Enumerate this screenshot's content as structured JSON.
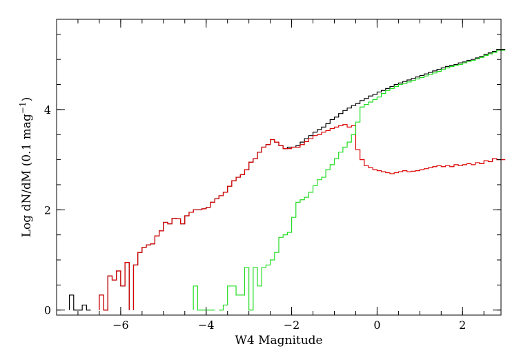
{
  "chart_data": {
    "type": "line",
    "step": true,
    "title": "",
    "xlabel": "W4 Magnitude",
    "ylabel": {
      "main": "Log dN/dM (0.1 mag",
      "sup": "−1",
      "close": ")"
    },
    "xlim": [
      -7.5,
      2.9
    ],
    "ylim": [
      -0.1,
      5.8
    ],
    "xticks": [
      {
        "value": -6,
        "label": "−6"
      },
      {
        "value": -4,
        "label": "−4"
      },
      {
        "value": -2,
        "label": "−2"
      },
      {
        "value": 0,
        "label": "0"
      },
      {
        "value": 2,
        "label": "2"
      }
    ],
    "yticks": [
      {
        "value": 0,
        "label": "0"
      },
      {
        "value": 2,
        "label": "2"
      },
      {
        "value": 4,
        "label": "4"
      }
    ],
    "x_minor_step": 0.5,
    "y_minor_step": 0.5,
    "grid": false,
    "legend": "none",
    "series": [
      {
        "color": "#000000",
        "points": [
          [
            -7.2,
            0.3
          ],
          [
            -7.1,
            0.0
          ],
          [
            -7.0,
            0.0
          ],
          [
            -6.9,
            0.1
          ],
          [
            -6.8,
            0.0
          ],
          [
            -6.5,
            0.3
          ],
          [
            -6.4,
            0.0
          ],
          [
            -6.3,
            0.68
          ],
          [
            -6.2,
            0.6
          ],
          [
            -6.1,
            0.78
          ],
          [
            -6.0,
            0.48
          ],
          [
            -5.9,
            0.95
          ],
          [
            -5.7,
            0.9
          ],
          [
            -5.6,
            1.15
          ],
          [
            -5.5,
            1.25
          ],
          [
            -5.4,
            1.3
          ],
          [
            -5.3,
            1.32
          ],
          [
            -5.2,
            1.48
          ],
          [
            -5.1,
            1.58
          ],
          [
            -5.0,
            1.75
          ],
          [
            -4.9,
            1.72
          ],
          [
            -4.8,
            1.83
          ],
          [
            -4.7,
            1.82
          ],
          [
            -4.6,
            1.72
          ],
          [
            -4.5,
            1.88
          ],
          [
            -4.4,
            1.95
          ],
          [
            -4.3,
            2.0
          ],
          [
            -4.2,
            2.0
          ],
          [
            -4.1,
            2.02
          ],
          [
            -4.0,
            2.05
          ],
          [
            -3.9,
            2.15
          ],
          [
            -3.8,
            2.22
          ],
          [
            -3.7,
            2.28
          ],
          [
            -3.6,
            2.35
          ],
          [
            -3.5,
            2.47
          ],
          [
            -3.4,
            2.58
          ],
          [
            -3.3,
            2.65
          ],
          [
            -3.2,
            2.7
          ],
          [
            -3.1,
            2.8
          ],
          [
            -3.0,
            2.95
          ],
          [
            -2.9,
            3.02
          ],
          [
            -2.8,
            3.15
          ],
          [
            -2.7,
            3.25
          ],
          [
            -2.6,
            3.3
          ],
          [
            -2.5,
            3.4
          ],
          [
            -2.4,
            3.35
          ],
          [
            -2.3,
            3.28
          ],
          [
            -2.2,
            3.22
          ],
          [
            -2.1,
            3.25
          ],
          [
            -2.0,
            3.25
          ],
          [
            -1.9,
            3.28
          ],
          [
            -1.8,
            3.35
          ],
          [
            -1.7,
            3.42
          ],
          [
            -1.6,
            3.48
          ],
          [
            -1.5,
            3.55
          ],
          [
            -1.4,
            3.6
          ],
          [
            -1.3,
            3.65
          ],
          [
            -1.2,
            3.72
          ],
          [
            -1.1,
            3.8
          ],
          [
            -1.0,
            3.85
          ],
          [
            -0.9,
            3.92
          ],
          [
            -0.8,
            3.98
          ],
          [
            -0.7,
            4.03
          ],
          [
            -0.6,
            4.08
          ],
          [
            -0.5,
            4.12
          ],
          [
            -0.4,
            4.18
          ],
          [
            -0.3,
            4.22
          ],
          [
            -0.2,
            4.27
          ],
          [
            -0.1,
            4.3
          ],
          [
            0.0,
            4.35
          ],
          [
            0.1,
            4.38
          ],
          [
            0.2,
            4.42
          ],
          [
            0.3,
            4.46
          ],
          [
            0.4,
            4.5
          ],
          [
            0.5,
            4.53
          ],
          [
            0.6,
            4.56
          ],
          [
            0.7,
            4.59
          ],
          [
            0.8,
            4.62
          ],
          [
            0.9,
            4.65
          ],
          [
            1.0,
            4.68
          ],
          [
            1.1,
            4.71
          ],
          [
            1.2,
            4.74
          ],
          [
            1.3,
            4.77
          ],
          [
            1.4,
            4.8
          ],
          [
            1.5,
            4.83
          ],
          [
            1.6,
            4.86
          ],
          [
            1.7,
            4.88
          ],
          [
            1.8,
            4.9
          ],
          [
            1.9,
            4.93
          ],
          [
            2.0,
            4.95
          ],
          [
            2.1,
            4.98
          ],
          [
            2.2,
            5.0
          ],
          [
            2.3,
            5.03
          ],
          [
            2.4,
            5.06
          ],
          [
            2.5,
            5.1
          ],
          [
            2.6,
            5.13
          ],
          [
            2.7,
            5.16
          ],
          [
            2.8,
            5.2
          ],
          [
            2.9,
            5.2
          ]
        ]
      },
      {
        "color": "#dd0000",
        "points": [
          [
            -6.5,
            0.3
          ],
          [
            -6.4,
            0.0
          ],
          [
            -6.3,
            0.68
          ],
          [
            -6.2,
            0.6
          ],
          [
            -6.1,
            0.78
          ],
          [
            -6.0,
            0.48
          ],
          [
            -5.9,
            0.95
          ],
          [
            -5.7,
            0.9
          ],
          [
            -5.6,
            1.15
          ],
          [
            -5.5,
            1.25
          ],
          [
            -5.4,
            1.3
          ],
          [
            -5.3,
            1.32
          ],
          [
            -5.2,
            1.48
          ],
          [
            -5.1,
            1.58
          ],
          [
            -5.0,
            1.75
          ],
          [
            -4.9,
            1.72
          ],
          [
            -4.8,
            1.83
          ],
          [
            -4.7,
            1.82
          ],
          [
            -4.6,
            1.72
          ],
          [
            -4.5,
            1.88
          ],
          [
            -4.4,
            1.95
          ],
          [
            -4.3,
            2.0
          ],
          [
            -4.2,
            2.0
          ],
          [
            -4.1,
            2.02
          ],
          [
            -4.0,
            2.05
          ],
          [
            -3.9,
            2.15
          ],
          [
            -3.8,
            2.22
          ],
          [
            -3.7,
            2.28
          ],
          [
            -3.6,
            2.35
          ],
          [
            -3.5,
            2.47
          ],
          [
            -3.4,
            2.58
          ],
          [
            -3.3,
            2.65
          ],
          [
            -3.2,
            2.7
          ],
          [
            -3.1,
            2.8
          ],
          [
            -3.0,
            2.95
          ],
          [
            -2.9,
            3.02
          ],
          [
            -2.8,
            3.15
          ],
          [
            -2.7,
            3.25
          ],
          [
            -2.6,
            3.3
          ],
          [
            -2.5,
            3.4
          ],
          [
            -2.4,
            3.35
          ],
          [
            -2.3,
            3.28
          ],
          [
            -2.2,
            3.22
          ],
          [
            -2.1,
            3.22
          ],
          [
            -2.0,
            3.25
          ],
          [
            -1.9,
            3.25
          ],
          [
            -1.8,
            3.3
          ],
          [
            -1.7,
            3.36
          ],
          [
            -1.6,
            3.42
          ],
          [
            -1.5,
            3.48
          ],
          [
            -1.4,
            3.5
          ],
          [
            -1.3,
            3.55
          ],
          [
            -1.2,
            3.58
          ],
          [
            -1.1,
            3.62
          ],
          [
            -1.0,
            3.65
          ],
          [
            -0.9,
            3.68
          ],
          [
            -0.8,
            3.7
          ],
          [
            -0.7,
            3.65
          ],
          [
            -0.6,
            3.68
          ],
          [
            -0.5,
            3.2
          ],
          [
            -0.4,
            3.0
          ],
          [
            -0.3,
            2.88
          ],
          [
            -0.2,
            2.84
          ],
          [
            -0.1,
            2.8
          ],
          [
            0.0,
            2.78
          ],
          [
            0.1,
            2.76
          ],
          [
            0.2,
            2.74
          ],
          [
            0.3,
            2.72
          ],
          [
            0.4,
            2.74
          ],
          [
            0.5,
            2.76
          ],
          [
            0.6,
            2.78
          ],
          [
            0.7,
            2.76
          ],
          [
            0.8,
            2.77
          ],
          [
            0.9,
            2.78
          ],
          [
            1.0,
            2.8
          ],
          [
            1.1,
            2.82
          ],
          [
            1.2,
            2.84
          ],
          [
            1.3,
            2.86
          ],
          [
            1.4,
            2.88
          ],
          [
            1.5,
            2.86
          ],
          [
            1.6,
            2.88
          ],
          [
            1.7,
            2.86
          ],
          [
            1.8,
            2.9
          ],
          [
            1.9,
            2.88
          ],
          [
            2.0,
            2.9
          ],
          [
            2.1,
            2.92
          ],
          [
            2.2,
            2.9
          ],
          [
            2.3,
            2.94
          ],
          [
            2.4,
            2.92
          ],
          [
            2.5,
            2.98
          ],
          [
            2.6,
            2.96
          ],
          [
            2.7,
            3.02
          ],
          [
            2.8,
            3.0
          ],
          [
            2.9,
            3.0
          ]
        ]
      },
      {
        "color": "#22dd22",
        "points": [
          [
            -4.3,
            0.48
          ],
          [
            -4.2,
            0.0
          ],
          [
            -4.1,
            0.0
          ],
          [
            -4.0,
            0.0
          ],
          [
            -3.9,
            0.0
          ],
          [
            -3.7,
            0.0
          ],
          [
            -3.6,
            0.1
          ],
          [
            -3.5,
            0.48
          ],
          [
            -3.4,
            0.48
          ],
          [
            -3.3,
            0.3
          ],
          [
            -3.2,
            0.3
          ],
          [
            -3.1,
            0.85
          ],
          [
            -3.0,
            0.0
          ],
          [
            -2.9,
            0.85
          ],
          [
            -2.8,
            0.48
          ],
          [
            -2.7,
            0.85
          ],
          [
            -2.6,
            0.9
          ],
          [
            -2.5,
            1.0
          ],
          [
            -2.4,
            1.15
          ],
          [
            -2.3,
            1.45
          ],
          [
            -2.2,
            1.5
          ],
          [
            -2.1,
            1.55
          ],
          [
            -2.0,
            1.85
          ],
          [
            -1.9,
            2.15
          ],
          [
            -1.8,
            2.2
          ],
          [
            -1.7,
            2.25
          ],
          [
            -1.6,
            2.35
          ],
          [
            -1.5,
            2.48
          ],
          [
            -1.4,
            2.6
          ],
          [
            -1.3,
            2.65
          ],
          [
            -1.2,
            2.8
          ],
          [
            -1.1,
            2.9
          ],
          [
            -1.0,
            3.02
          ],
          [
            -0.9,
            3.15
          ],
          [
            -0.8,
            3.25
          ],
          [
            -0.7,
            3.35
          ],
          [
            -0.6,
            3.5
          ],
          [
            -0.5,
            3.75
          ],
          [
            -0.4,
            4.05
          ],
          [
            -0.3,
            4.1
          ],
          [
            -0.2,
            4.15
          ],
          [
            -0.1,
            4.2
          ],
          [
            0.0,
            4.25
          ],
          [
            0.1,
            4.32
          ],
          [
            0.2,
            4.38
          ],
          [
            0.3,
            4.42
          ],
          [
            0.4,
            4.46
          ],
          [
            0.5,
            4.5
          ],
          [
            0.6,
            4.52
          ],
          [
            0.7,
            4.55
          ],
          [
            0.8,
            4.58
          ],
          [
            0.9,
            4.61
          ],
          [
            1.0,
            4.64
          ],
          [
            1.1,
            4.67
          ],
          [
            1.2,
            4.7
          ],
          [
            1.3,
            4.73
          ],
          [
            1.4,
            4.76
          ],
          [
            1.5,
            4.8
          ],
          [
            1.6,
            4.83
          ],
          [
            1.7,
            4.86
          ],
          [
            1.8,
            4.88
          ],
          [
            1.9,
            4.9
          ],
          [
            2.0,
            4.93
          ],
          [
            2.1,
            4.96
          ],
          [
            2.2,
            4.98
          ],
          [
            2.3,
            5.01
          ],
          [
            2.4,
            5.04
          ],
          [
            2.5,
            5.08
          ],
          [
            2.6,
            5.11
          ],
          [
            2.7,
            5.14
          ],
          [
            2.8,
            5.18
          ],
          [
            2.9,
            5.18
          ]
        ]
      }
    ]
  }
}
